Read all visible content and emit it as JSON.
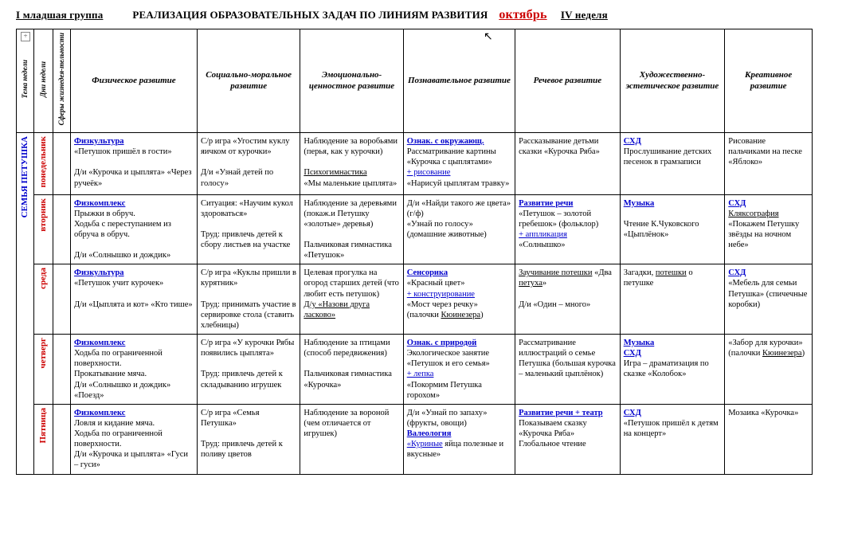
{
  "title": {
    "group": "I младшая группа",
    "main": "РЕАЛИЗАЦИЯ ОБРАЗОВАТЕЛЬНЫХ ЗАДАЧ ПО ЛИНИЯМ РАЗВИТИЯ",
    "month": "октябрь",
    "week": "IV  неделя"
  },
  "rowHeaders": {
    "theme": "Тема недели",
    "days": "Дни недели",
    "sphere": "Сферы жизнедея-тельности",
    "topic": "СЕМЬЯ ПЕТУШКА"
  },
  "columns": [
    "Физическое развитие",
    "Социально-моральное развитие",
    "Эмоционально-ценностное развитие",
    "Познавательное развитие",
    "Речевое развитие",
    "Художественно-эстетическое развитие",
    "Креативное развитие"
  ],
  "days": [
    "понедельник",
    "вторник",
    "среда",
    "четверг",
    "Пятница"
  ],
  "cells": {
    "mon": {
      "c1": "<span class='link'>Физкультура</span><br>«Петушок пришёл в гости»<br><br>Д/и «Курочка и цыплята» «Через ручеёк»",
      "c2": "С/р игра «Угостим куклу яичком от курочки»<br><br>Д/и «Узнай детей по голосу»",
      "c3": "Наблюдение за воробьями (перья, как у курочки)<br><br><span class='duline'>Психогимнастика</span><br>«Мы маленькие цыплята»",
      "c4": "<span class='link'>Ознак. с окружающ.</span><br>Рассматривание картины «Курочка с цыплятами»<br><span class='plus'>+ рисование</span><br>«Нарисуй цыплятам травку»",
      "c5": "Рассказывание детьми сказки «Курочка Ряба»",
      "c6": "<span class='link'>СХД</span><br>Прослушивание детских песенок в грамзаписи",
      "c7": "Рисование пальчиками на песке «Яблоко»"
    },
    "tue": {
      "c1": "<span class='link'>Физкомплекс</span><br>Прыжки в обруч.<br>Ходьба с переступанием из обруча в обруч.<br><br>Д/и «Солнышко и дождик»",
      "c2": "Ситуация: «Научим кукол здороваться»<br><br>Труд: привлечь детей к сбору листьев на участке",
      "c3": "Наблюдение за деревьями (покаж.и Петушку «золотые» деревья)<br><br>Пальчиковая гимнастика «Петушок»",
      "c4": "Д/и «Найди такого же цвета» (г/ф)<br>«Узнай по голосу» (домашние животные)",
      "c5": "<span class='link'>Развитие речи</span><br>«Петушок – золотой гребешок» (фольклор)<br><span class='plus'>+ аппликация</span><br>«Солнышко»",
      "c6": "<span class='link'>Музыка</span><br><br>Чтение К.Чуковского «Цыплёнок»",
      "c7": "<span class='link'>СХД</span><br><span class='duline'>Кляксография</span><br>«Покажем Петушку звёзды на ночном небе»"
    },
    "wed": {
      "c1": "<span class='link'>Физкультура</span><br>«Петушок учит курочек»<br><br>Д/и «Цыплята и кот» «Кто тише»",
      "c2": "С/р игра «Куклы пришли в курятник»<br><br>Труд: принимать участие в сервировке стола (ставить хлебницы)",
      "c3": "Целевая прогулка на огород старших детей (что любит есть петушок)<br><span class='duline'>Д/у «Назови друга ласково»</span>",
      "c4": "<span class='link'>Сенсорика</span><br>«Красный цвет»<br><span class='plus'>+ конструирование</span><br>«Мост через речку» (палочки <span class='duline'>Кюинезера</span>)",
      "c5": "<span class='duline'>Заучивание потешки</span> «Два <span class='duline'>петуха</span>»<br><br>Д/и «Один – много»",
      "c6": "Загадки, <span class='duline'>потешки</span> о петушке",
      "c7": "<span class='link'>СХД</span><br>«Мебель для семьи Петушка» (спичечные коробки)"
    },
    "thu": {
      "c1": "<span class='link'>Физкомплекс</span><br>Ходьба по ограниченной поверхности.<br>Прокатывание мяча.<br>Д/и «Солнышко и дождик» «Поезд»",
      "c2": "С/р игра «У курочки Рябы появились цыплята»<br><br>Труд: привлечь детей к складыванию игрушек",
      "c3": "Наблюдение за птицами (способ передвижения)<br><br>Пальчиковая гимнастика «Курочка»",
      "c4": "<span class='link'>Ознак. с природой</span><br>Экологическое занятие «Петушок и его семья»<br><span class='plus'>+ лепка</span><br>«Покормим Петушка горохом»",
      "c5": "Рассматривание иллюстраций о семье Петушка (большая курочка – маленький цыплёнок)",
      "c6": "<span class='link'>Музыка</span><br><span class='link'>СХД</span><br>Игра – драматизация по сказке «Колобок»",
      "c7": "«Забор для курочки» (палочки <span class='duline'>Кюинезера</span>)"
    },
    "fri": {
      "c1": "<span class='link'>Физкомплекс</span><br>Ловля и кидание мяча.<br>Ходьба по ограниченной поверхности.<br>Д/и «Курочка и цыплята» «Гуси – гуси»",
      "c2": "С/р игра «Семья Петушка»<br><br>Труд: привлечь детей к поливу цветов",
      "c3": "Наблюдение за вороной (чем отличается от игрушек)",
      "c4": "Д/и «Узнай по запаху» (фрукты, овощи)<br><span class='link'>Валеология</span><br><span class='duline redtxt' style='color:#0000cc'>«Куриные</span> яйца полезные и вкусные»",
      "c5": "<span class='link'>Развитие речи + театр</span><br>Показываем сказку «Курочка Ряба» Глобальное чтение",
      "c6": "<span class='link'>СХД</span><br>«Петушок пришёл к детям на концерт»",
      "c7": "Мозаика «Курочка»"
    }
  }
}
